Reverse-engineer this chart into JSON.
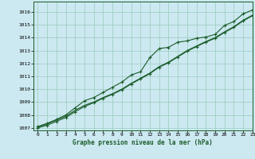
{
  "title": "Graphe pression niveau de la mer (hPa)",
  "bg_color": "#cce8f0",
  "grid_color": "#99ccbb",
  "line_color": "#1a5c2a",
  "xlim": [
    -0.5,
    23
  ],
  "ylim": [
    1006.8,
    1016.8
  ],
  "xticks": [
    0,
    1,
    2,
    3,
    4,
    5,
    6,
    7,
    8,
    9,
    10,
    11,
    12,
    13,
    14,
    15,
    16,
    17,
    18,
    19,
    20,
    21,
    22,
    23
  ],
  "yticks": [
    1007,
    1008,
    1009,
    1010,
    1011,
    1012,
    1013,
    1014,
    1015,
    1016
  ],
  "hours": [
    0,
    1,
    2,
    3,
    4,
    5,
    6,
    7,
    8,
    9,
    10,
    11,
    12,
    13,
    14,
    15,
    16,
    17,
    18,
    19,
    20,
    21,
    22,
    23
  ],
  "line1": [
    1007.1,
    1007.35,
    1007.65,
    1008.0,
    1008.55,
    1009.1,
    1009.35,
    1009.75,
    1010.15,
    1010.55,
    1011.1,
    1011.35,
    1012.45,
    1013.15,
    1013.25,
    1013.65,
    1013.75,
    1013.95,
    1014.05,
    1014.25,
    1014.95,
    1015.25,
    1015.85,
    1016.15
  ],
  "line2": [
    1007.05,
    1007.3,
    1007.6,
    1007.9,
    1008.35,
    1008.75,
    1009.0,
    1009.35,
    1009.65,
    1010.0,
    1010.45,
    1010.85,
    1011.25,
    1011.75,
    1012.1,
    1012.55,
    1013.0,
    1013.35,
    1013.7,
    1014.0,
    1014.45,
    1014.85,
    1015.35,
    1015.75
  ],
  "line3": [
    1007.0,
    1007.2,
    1007.5,
    1007.8,
    1008.25,
    1008.65,
    1008.95,
    1009.3,
    1009.6,
    1009.95,
    1010.4,
    1010.8,
    1011.2,
    1011.7,
    1012.05,
    1012.5,
    1012.95,
    1013.3,
    1013.65,
    1013.95,
    1014.4,
    1014.8,
    1015.3,
    1015.7
  ]
}
